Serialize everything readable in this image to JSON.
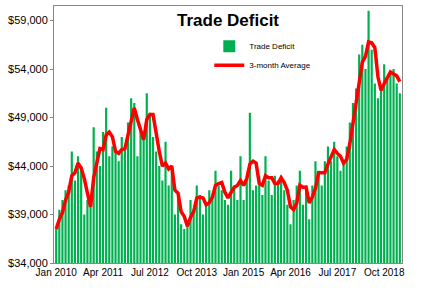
{
  "chart_data": {
    "type": "bar",
    "title": "Trade Deficit",
    "categories": [
      "Jan 2010",
      null,
      null,
      null,
      null,
      null,
      null,
      null,
      null,
      null,
      null,
      null,
      null,
      null,
      null,
      "Apr 2011",
      null,
      null,
      null,
      null,
      null,
      null,
      null,
      null,
      null,
      null,
      null,
      null,
      null,
      null,
      "Jul 2012",
      null,
      null,
      null,
      null,
      null,
      null,
      null,
      null,
      null,
      null,
      null,
      null,
      null,
      null,
      "Oct 2013",
      null,
      null,
      null,
      null,
      null,
      null,
      null,
      null,
      null,
      null,
      null,
      null,
      null,
      null,
      "Jan 2015",
      null,
      null,
      null,
      null,
      null,
      null,
      null,
      null,
      null,
      null,
      null,
      null,
      null,
      null,
      "Apr 2016",
      null,
      null,
      null,
      null,
      null,
      null,
      null,
      null,
      null,
      null,
      null,
      null,
      null,
      null,
      "Jul 2017",
      null,
      null,
      null,
      null,
      null,
      null,
      null,
      null,
      null,
      null,
      null,
      null,
      null,
      null,
      "Oct 2018",
      null,
      null,
      null,
      null,
      null
    ],
    "series": [
      {
        "name": "Trade Deficit",
        "type": "bar",
        "color": "#00b050",
        "values": [
          37500,
          39500,
          40500,
          41500,
          42000,
          45500,
          42500,
          45000,
          44000,
          39000,
          40500,
          40000,
          48000,
          45500,
          44000,
          47500,
          50000,
          45000,
          46000,
          45500,
          44500,
          47000,
          46000,
          48500,
          51000,
          50500,
          45000,
          48000,
          47000,
          51500,
          49500,
          47000,
          45500,
          44000,
          42500,
          46500,
          42000,
          43500,
          39000,
          41000,
          38000,
          37500,
          38000,
          40500,
          39500,
          42000,
          41000,
          39000,
          40000,
          41500,
          41000,
          43500,
          42000,
          41500,
          40500,
          40000,
          43500,
          42000,
          40500,
          45000,
          40500,
          42500,
          49500,
          41500,
          42000,
          43000,
          41000,
          45000,
          42500,
          41000,
          43000,
          42500,
          43000,
          41500,
          40000,
          38000,
          40500,
          42000,
          43500,
          40000,
          42000,
          38500,
          42000,
          44500,
          43500,
          42000,
          44500,
          46000,
          44500,
          46500,
          45000,
          43500,
          44500,
          46000,
          48500,
          50500,
          52000,
          55500,
          56500,
          54000,
          60000,
          56000,
          52500,
          51000,
          52000,
          54500,
          53000,
          53500,
          54000,
          52500,
          51500
        ]
      },
      {
        "name": "3-month Average",
        "type": "line",
        "color": "#ff0000",
        "line_style": "solid",
        "values": [
          37500,
          38500,
          39200,
          40500,
          41300,
          43000,
          43300,
          44300,
          43800,
          42700,
          41200,
          39800,
          42800,
          44500,
          45800,
          45700,
          47200,
          47500,
          47000,
          45500,
          45300,
          45700,
          45800,
          47200,
          48500,
          50000,
          48800,
          47800,
          46700,
          48800,
          49300,
          49300,
          47300,
          45500,
          44000,
          44300,
          43700,
          44000,
          41500,
          41200,
          39300,
          38800,
          37800,
          38700,
          39300,
          40700,
          40800,
          40700,
          40000,
          40200,
          40800,
          42000,
          42200,
          42300,
          41300,
          40700,
          41300,
          41800,
          42000,
          42500,
          42000,
          42700,
          44200,
          44500,
          44300,
          42200,
          42000,
          43000,
          42800,
          42800,
          42200,
          42200,
          42800,
          42300,
          41500,
          39800,
          39500,
          40200,
          42000,
          41800,
          41800,
          40200,
          40800,
          41700,
          43300,
          43300,
          43300,
          44200,
          45000,
          45700,
          45300,
          45000,
          44300,
          44700,
          46300,
          48300,
          50300,
          52700,
          54700,
          55300,
          56800,
          56700,
          56200,
          53200,
          51800,
          52500,
          53200,
          53700,
          53500,
          53300,
          52700
        ]
      }
    ],
    "ylim": [
      34000,
      60500
    ],
    "yticks": [
      {
        "value": 34000,
        "label": "$34,000"
      },
      {
        "value": 39000,
        "label": "$39,000"
      },
      {
        "value": 44000,
        "label": "$44,000"
      },
      {
        "value": 49000,
        "label": "$49,000"
      },
      {
        "value": 54000,
        "label": "$54,000"
      },
      {
        "value": 59000,
        "label": "$59,000"
      }
    ],
    "grid": false,
    "legend": "top"
  }
}
